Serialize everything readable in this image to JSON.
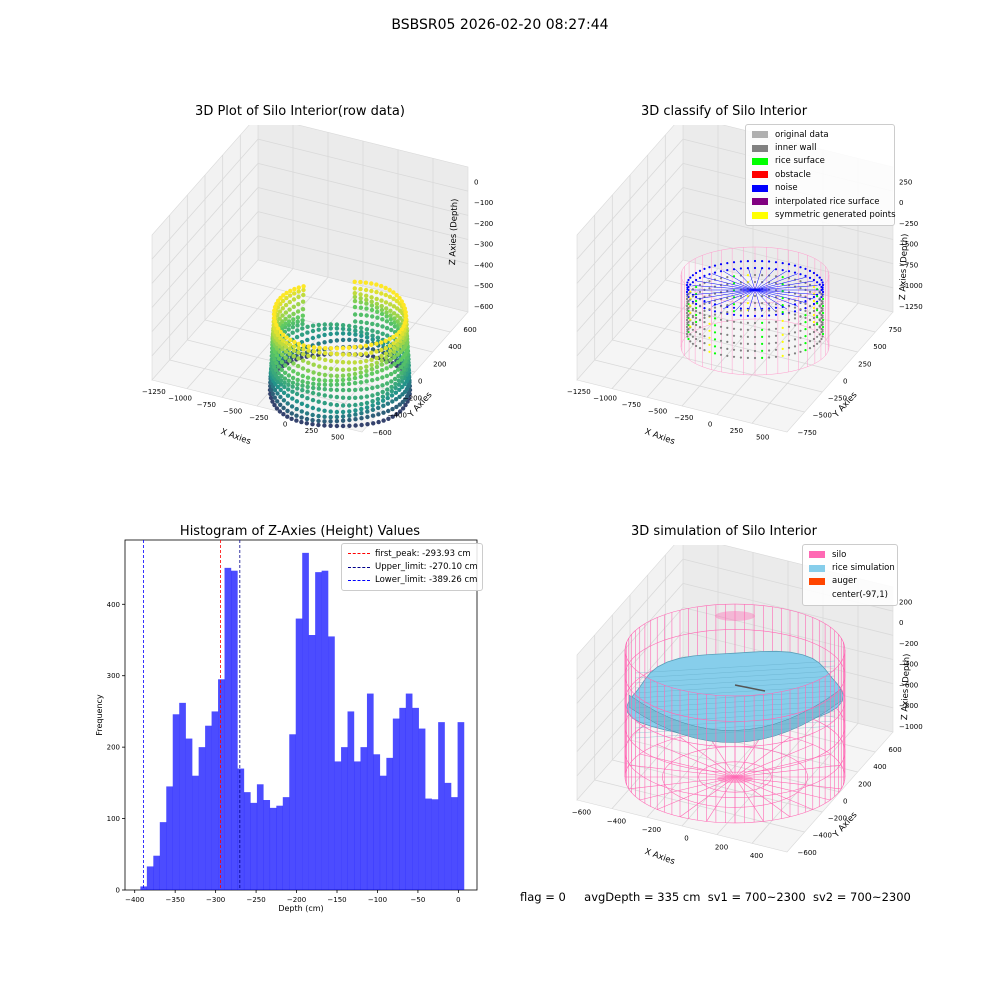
{
  "figure": {
    "suptitle": "BSBSR05 2026-02-20 08:27:44",
    "info_text": {
      "flag": "flag = 0",
      "avg_depth": "avgDepth = 335 cm",
      "sv1": "sv1 = 700~2300",
      "sv2": "sv2 = 700~2300"
    }
  },
  "panel1": {
    "title": "3D Plot of Silo Interior(row data)",
    "xlabel": "X Axies",
    "ylabel": "Y Axies",
    "zlabel": "Z Axies (Depth)",
    "xticks": [
      "−1250",
      "−1000",
      "−750",
      "−500",
      "−250",
      "0",
      "250",
      "500"
    ],
    "yticks": [
      "−600",
      "−400",
      "−200",
      "0",
      "200",
      "400",
      "600"
    ],
    "zticks": [
      "−600",
      "−500",
      "−400",
      "−300",
      "−200",
      "−100",
      "0"
    ],
    "colormap": [
      "#440154",
      "#21918c",
      "#5ec962",
      "#fde725"
    ]
  },
  "panel2": {
    "title": "3D classify of Silo Interior",
    "xlabel": "X Axies",
    "ylabel": "Y Axies",
    "zlabel": "Z Axies (Depth)",
    "xticks": [
      "−1250",
      "−1000",
      "−750",
      "−500",
      "−250",
      "0",
      "250",
      "500"
    ],
    "yticks": [
      "−750",
      "−500",
      "−250",
      "0",
      "250",
      "500",
      "750"
    ],
    "zticks": [
      "−1250",
      "−1000",
      "−750",
      "−500",
      "−250",
      "0",
      "250"
    ],
    "legend": [
      {
        "label": "original data",
        "color": "#b0b0b0"
      },
      {
        "label": "inner wall",
        "color": "#808080"
      },
      {
        "label": "rice surface",
        "color": "#00ff00"
      },
      {
        "label": "obstacle",
        "color": "#ff0000"
      },
      {
        "label": "noise",
        "color": "#0000ff"
      },
      {
        "label": "interpolated rice surface",
        "color": "#800080"
      },
      {
        "label": "symmetric generated points",
        "color": "#ffff00"
      }
    ]
  },
  "panel4": {
    "title": "3D simulation of Silo Interior",
    "xlabel": "X Axies",
    "ylabel": "Y Axies",
    "zlabel": "Z Axies (Depth)",
    "xticks": [
      "−600",
      "−400",
      "−200",
      "0",
      "200",
      "400"
    ],
    "yticks": [
      "−600",
      "−400",
      "−200",
      "0",
      "200",
      "400",
      "600"
    ],
    "zticks": [
      "−1000",
      "−800",
      "−600",
      "−400",
      "−200",
      "0",
      "200"
    ],
    "legend": [
      {
        "label": "silo",
        "color": "#ff69b4"
      },
      {
        "label": "rice simulation",
        "color": "#87ceeb"
      },
      {
        "label": "auger",
        "color": "#ff4500"
      },
      {
        "label": "center(-97,1)",
        "color": ""
      }
    ]
  },
  "chart_data": [
    {
      "type": "bar",
      "title": "Histogram of Z-Axies (Height) Values",
      "xlabel": "Depth (cm)",
      "ylabel": "Frequency",
      "xlim": [
        -412,
        23
      ],
      "ylim": [
        0,
        490
      ],
      "xticks": [
        -400,
        -350,
        -300,
        -250,
        -200,
        -150,
        -100,
        -50,
        0
      ],
      "yticks": [
        0,
        100,
        200,
        300,
        400
      ],
      "bar_color": "#0000ff",
      "bin_edges_start": -393,
      "bin_width": 8,
      "values": [
        5,
        33,
        48,
        95,
        145,
        246,
        262,
        212,
        160,
        200,
        230,
        250,
        295,
        451,
        447,
        170,
        137,
        122,
        148,
        126,
        115,
        118,
        130,
        218,
        380,
        472,
        357,
        445,
        447,
        355,
        180,
        200,
        250,
        180,
        200,
        275,
        190,
        160,
        185,
        240,
        255,
        275,
        255,
        226,
        128,
        127,
        235,
        150,
        130,
        235
      ],
      "vlines": [
        {
          "x": -293.93,
          "color": "#ff0000",
          "label": "first_peak: -293.93 cm"
        },
        {
          "x": -270.1,
          "color": "#00008b",
          "label": "Upper_limit: -270.10 cm"
        },
        {
          "x": -389.26,
          "color": "#0000ff",
          "label": "Lower_limit: -389.26 cm"
        }
      ],
      "legend_position": "top-right"
    }
  ]
}
